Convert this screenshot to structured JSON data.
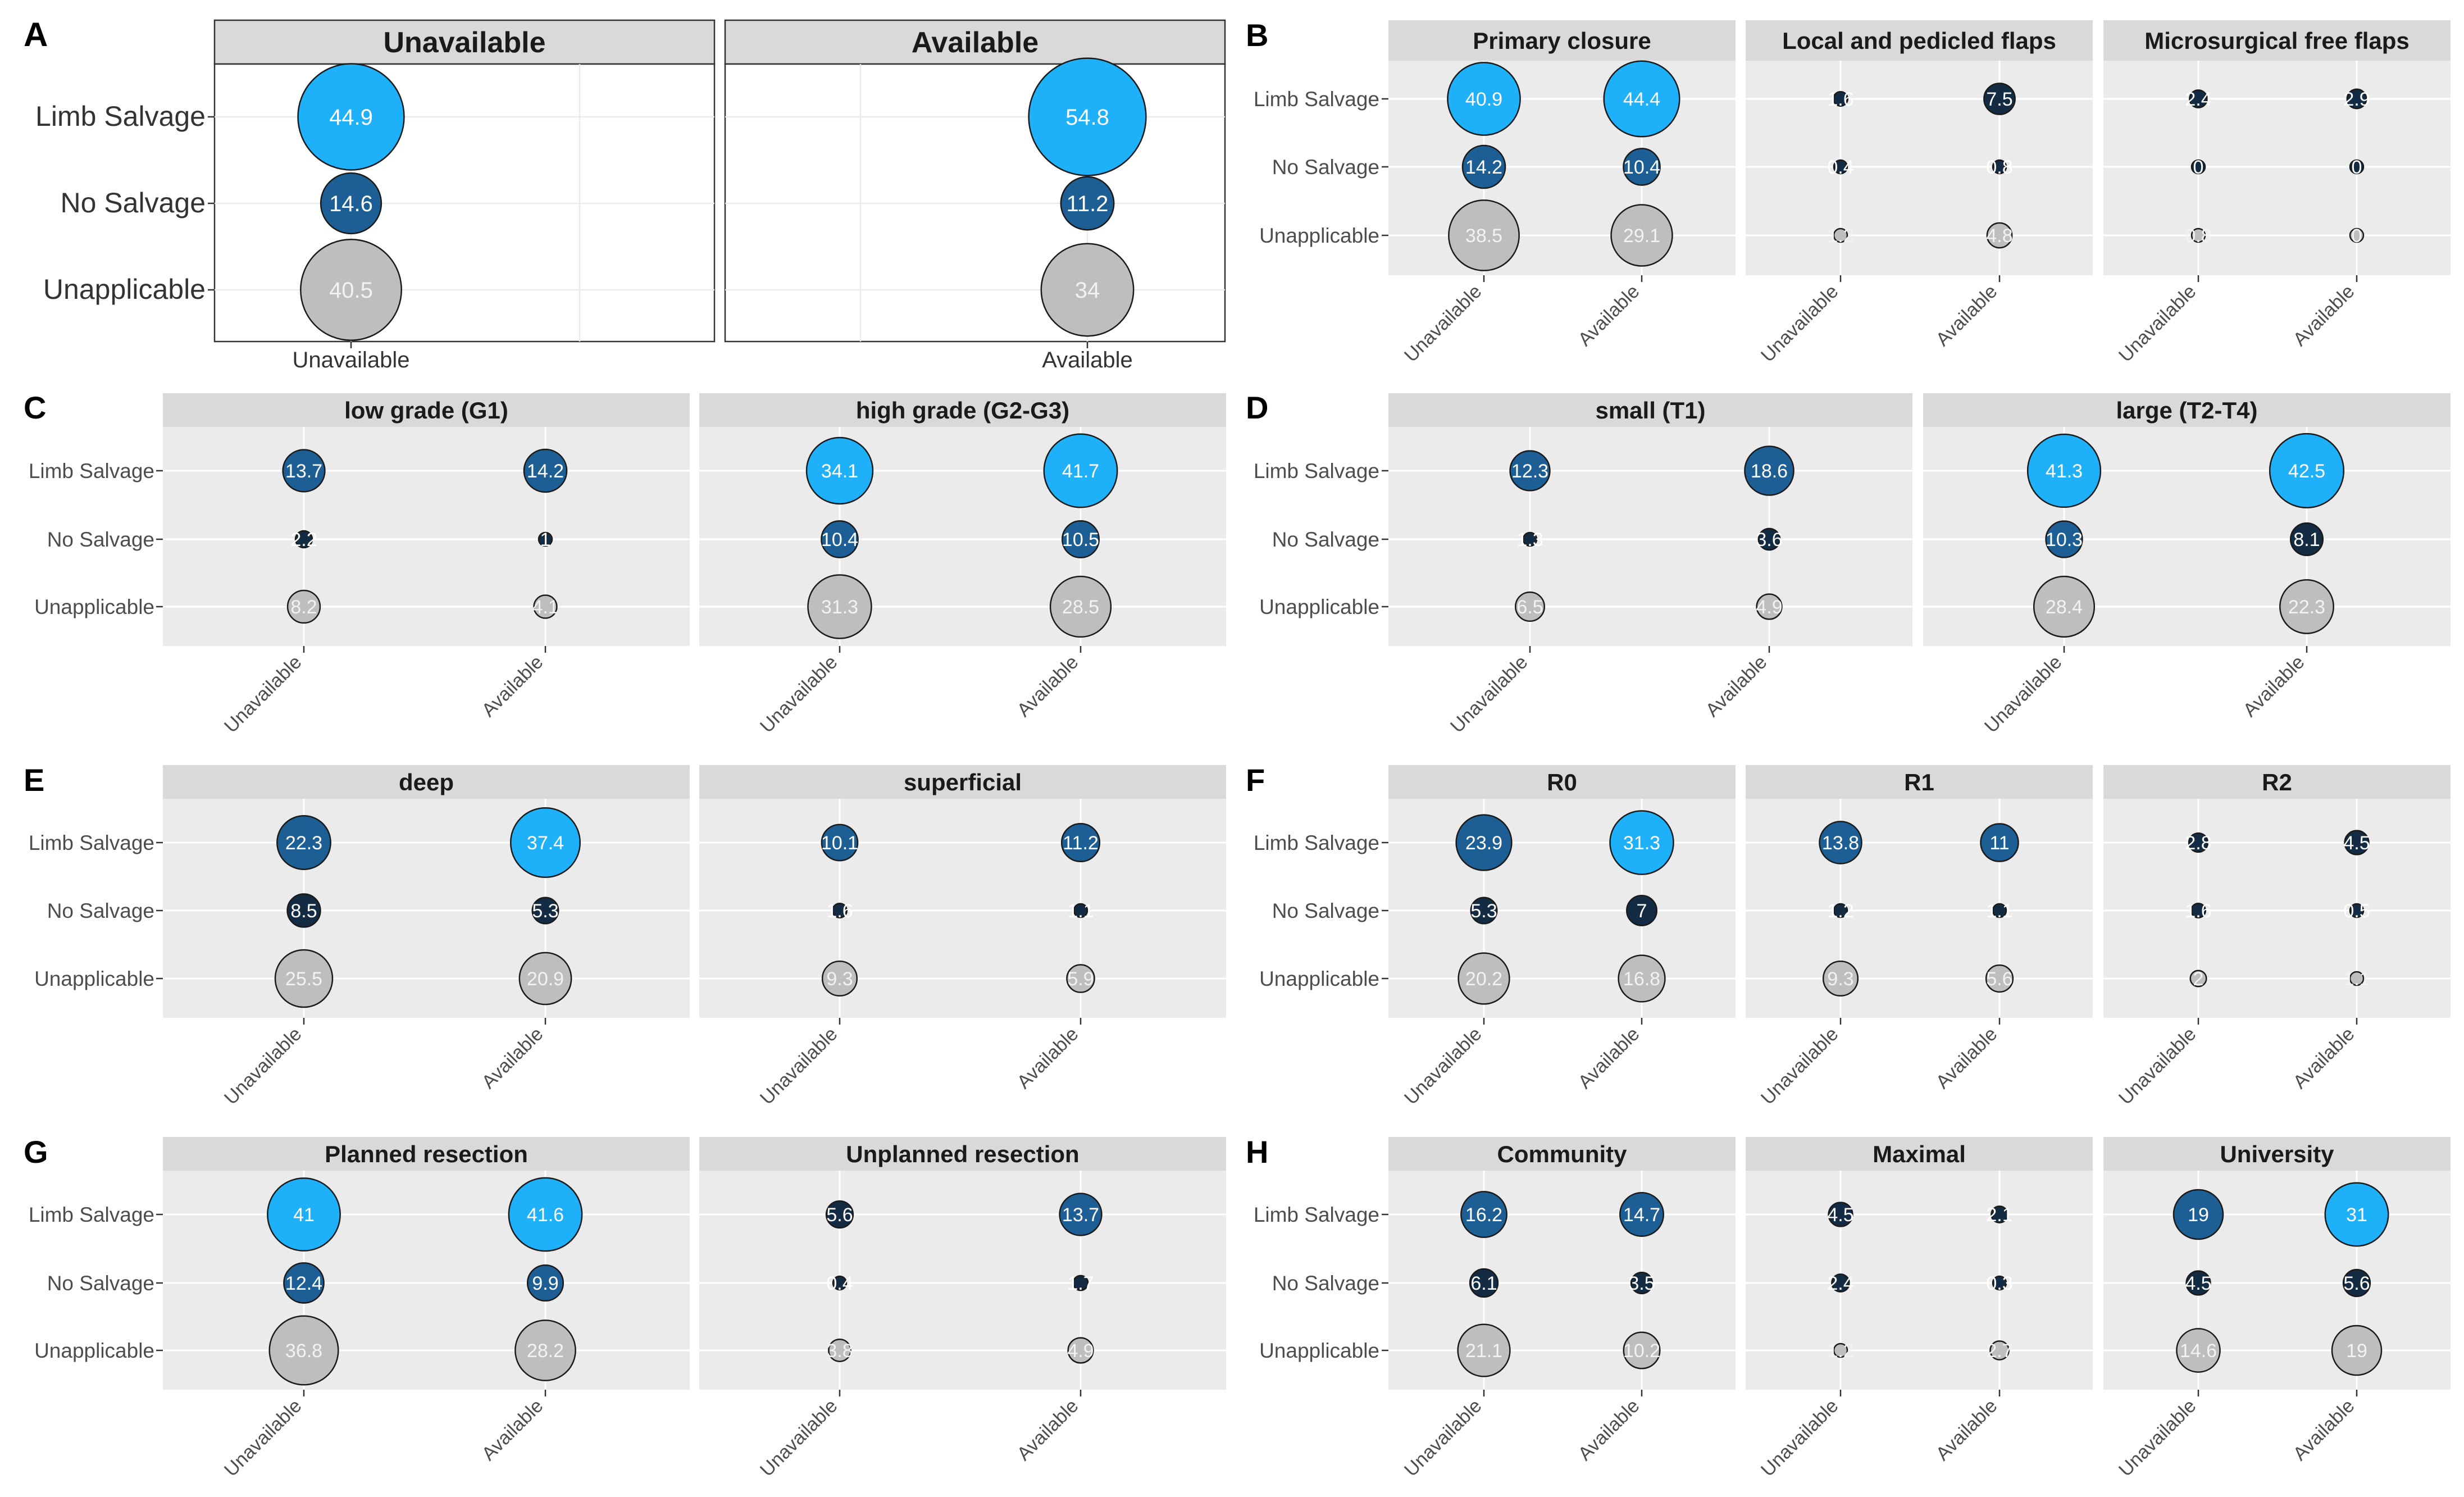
{
  "chart_data": {
    "type": "bubble",
    "y_categories": [
      "Limb Salvage",
      "No Salvage",
      "Unapplicable"
    ],
    "x_categories": [
      "Unavailable",
      "Available"
    ],
    "colors": {
      "grey": "#bebebe",
      "dark": "#132b43",
      "mid": "#1d5f94",
      "bright": "#1fb0fa",
      "strip": "#d9d9d9",
      "panel_grey": "#ebebeb",
      "grid": "#ffffff",
      "label_dark": "#333333",
      "label_light": "#4d4d4d"
    },
    "plots": [
      {
        "id": "A",
        "tag": "A",
        "style": "bw",
        "facets": [
          {
            "title": "Unavailable",
            "values": [
              [
                44.9,
                null
              ],
              [
                14.6,
                null
              ],
              [
                40.5,
                null
              ]
            ]
          },
          {
            "title": "Available",
            "values": [
              [
                null,
                54.8
              ],
              [
                null,
                11.2
              ],
              [
                null,
                34
              ]
            ]
          }
        ]
      },
      {
        "id": "B",
        "tag": "B",
        "style": "grey",
        "facets": [
          {
            "title": "Primary closure",
            "values": [
              [
                40.9,
                44.4
              ],
              [
                14.2,
                10.4
              ],
              [
                38.5,
                29.1
              ]
            ]
          },
          {
            "title": "Local and pedicled flaps",
            "values": [
              [
                1.6,
                7.5
              ],
              [
                0.4,
                0.8
              ],
              [
                1.2,
                4.8
              ]
            ]
          },
          {
            "title": "Microsurgical free flaps",
            "values": [
              [
                2.4,
                2.9
              ],
              [
                0,
                0
              ],
              [
                0.8,
                0
              ]
            ]
          }
        ]
      },
      {
        "id": "C",
        "tag": "C",
        "style": "grey",
        "facets": [
          {
            "title": "low grade (G1)",
            "values": [
              [
                13.7,
                14.2
              ],
              [
                2.2,
                1
              ],
              [
                8.2,
                4.1
              ]
            ]
          },
          {
            "title": "high grade (G2-G3)",
            "values": [
              [
                34.1,
                41.7
              ],
              [
                10.4,
                10.5
              ],
              [
                31.3,
                28.5
              ]
            ]
          }
        ]
      },
      {
        "id": "D",
        "tag": "D",
        "style": "grey",
        "facets": [
          {
            "title": "small (T1)",
            "values": [
              [
                12.3,
                18.6
              ],
              [
                1.3,
                3.6
              ],
              [
                6.5,
                4.9
              ]
            ]
          },
          {
            "title": "large (T2-T4)",
            "values": [
              [
                41.3,
                42.5
              ],
              [
                10.3,
                8.1
              ],
              [
                28.4,
                22.3
              ]
            ]
          }
        ]
      },
      {
        "id": "E",
        "tag": "E",
        "style": "grey",
        "facets": [
          {
            "title": "deep",
            "values": [
              [
                22.3,
                37.4
              ],
              [
                8.5,
                5.3
              ],
              [
                25.5,
                20.9
              ]
            ]
          },
          {
            "title": "superficial",
            "values": [
              [
                10.1,
                11.2
              ],
              [
                1.6,
                1.1
              ],
              [
                9.3,
                5.9
              ]
            ]
          }
        ]
      },
      {
        "id": "F",
        "tag": "F",
        "style": "grey",
        "facets": [
          {
            "title": "R0",
            "values": [
              [
                23.9,
                31.3
              ],
              [
                5.3,
                7
              ],
              [
                20.2,
                16.8
              ]
            ]
          },
          {
            "title": "R1",
            "values": [
              [
                13.8,
                11
              ],
              [
                1.2,
                1.1
              ],
              [
                9.3,
                5.6
              ]
            ]
          },
          {
            "title": "R2",
            "values": [
              [
                2.8,
                4.5
              ],
              [
                1.6,
                0.5
              ],
              [
                2,
                1.1
              ]
            ]
          }
        ]
      },
      {
        "id": "G",
        "tag": "G",
        "style": "grey",
        "facets": [
          {
            "title": "Planned resection",
            "values": [
              [
                41,
                41.6
              ],
              [
                12.4,
                9.9
              ],
              [
                36.8,
                28.2
              ]
            ]
          },
          {
            "title": "Unplanned resection",
            "values": [
              [
                5.6,
                13.7
              ],
              [
                0.4,
                1.7
              ],
              [
                3.8,
                4.9
              ]
            ]
          }
        ]
      },
      {
        "id": "H",
        "tag": "H",
        "style": "grey",
        "facets": [
          {
            "title": "Community",
            "values": [
              [
                16.2,
                14.7
              ],
              [
                6.1,
                3.5
              ],
              [
                21.1,
                10.2
              ]
            ]
          },
          {
            "title": "Maximal",
            "values": [
              [
                4.5,
                2.1
              ],
              [
                2.4,
                0.3
              ],
              [
                1.2,
                2.7
              ]
            ]
          },
          {
            "title": "University",
            "values": [
              [
                19,
                31
              ],
              [
                4.5,
                5.6
              ],
              [
                14.6,
                19
              ]
            ]
          }
        ]
      }
    ]
  }
}
